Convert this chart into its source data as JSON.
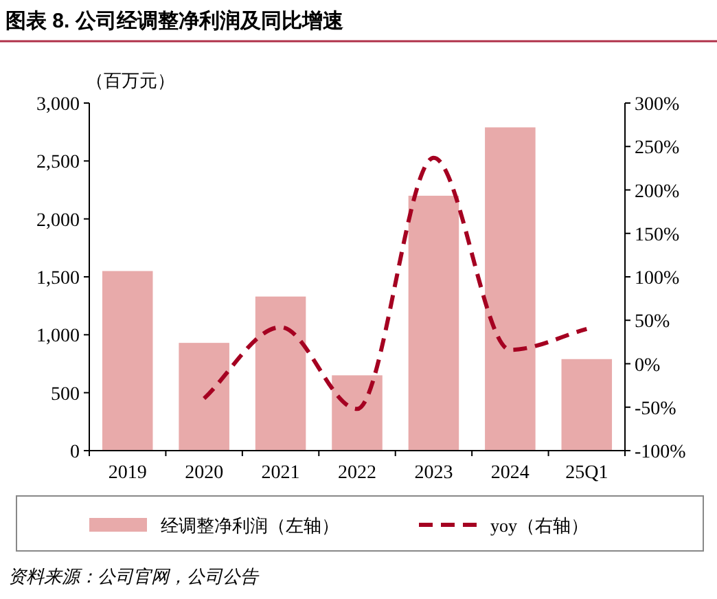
{
  "chart_data": {
    "type": "bar",
    "title": "图表 8. 公司经调整净利润及同比增速",
    "ylabel": "（百万元）",
    "categories": [
      "2019",
      "2020",
      "2021",
      "2022",
      "2023",
      "2024",
      "25Q1"
    ],
    "series": [
      {
        "name": "经调整净利润（左轴）",
        "type": "bar",
        "color": "#e8aaaa",
        "values": [
          1550,
          930,
          1330,
          650,
          2200,
          2790,
          790
        ]
      },
      {
        "name": "yoy（右轴）",
        "type": "line",
        "axis": "y2",
        "color": "#a50021",
        "line_style": "dashed",
        "values": [
          null,
          -40,
          42,
          -52,
          237,
          16,
          40
        ]
      }
    ],
    "ylim": [
      0,
      3000
    ],
    "yticks": [
      0,
      500,
      {
        "value": 1000,
        "label": "1,000"
      },
      {
        "value": 1500,
        "label": "1,500"
      },
      {
        "value": 2000,
        "label": "2,000"
      },
      {
        "value": 2500,
        "label": "2,500"
      },
      {
        "value": 3000,
        "label": "3,000"
      }
    ],
    "y2lim": [
      -100,
      300
    ],
    "y2ticks": [
      {
        "value": -100,
        "label": "-100%"
      },
      {
        "value": -50,
        "label": "-50%"
      },
      {
        "value": 0,
        "label": "0%"
      },
      {
        "value": 50,
        "label": "50%"
      },
      {
        "value": 100,
        "label": "100%"
      },
      {
        "value": 150,
        "label": "150%"
      },
      {
        "value": 200,
        "label": "200%"
      },
      {
        "value": 250,
        "label": "250%"
      },
      {
        "value": 300,
        "label": "300%"
      }
    ],
    "legend": "bottom",
    "annotations": [
      "资料来源：公司官网，公司公告"
    ]
  }
}
